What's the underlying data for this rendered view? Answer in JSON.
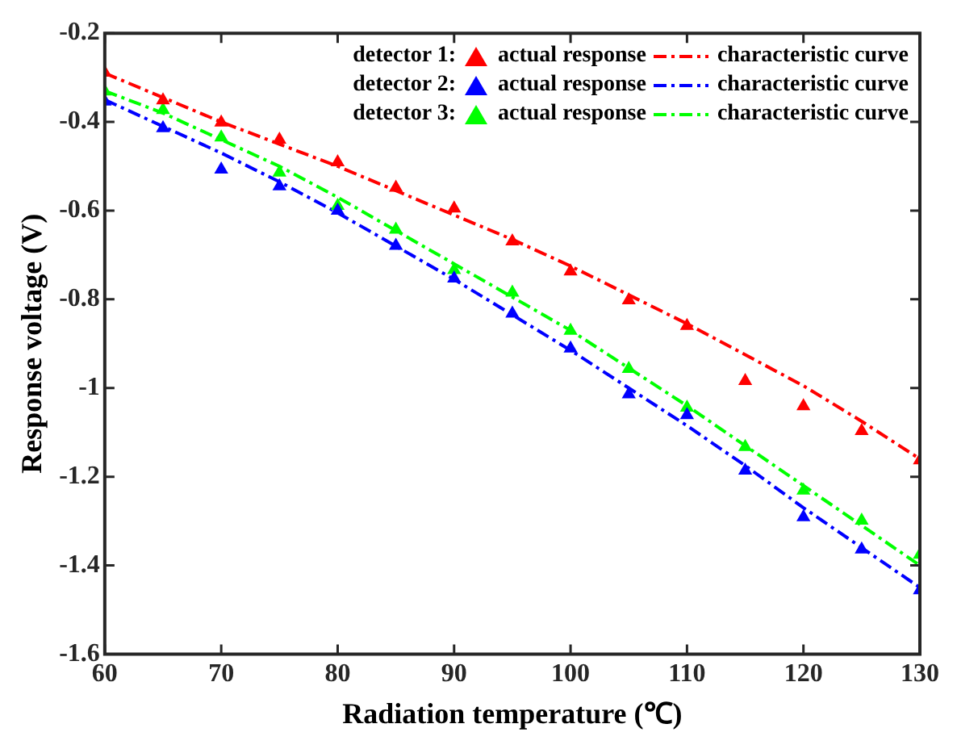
{
  "chart_data": {
    "type": "scatter",
    "xlabel": "Radiation temperature (℃)",
    "ylabel": "Response voltage (V)",
    "xlim": [
      60,
      130
    ],
    "xticks": [
      60,
      70,
      80,
      90,
      100,
      110,
      120,
      130
    ],
    "ylim": [
      -1.6,
      -0.2
    ],
    "yticks": [
      -1.6,
      -1.4,
      -1.2,
      -1,
      -0.8,
      -0.6,
      -0.4,
      -0.2
    ],
    "grid": false,
    "legend": "top right",
    "marker": "triangle",
    "annotations": [
      "detector 1:",
      "detector 2:",
      "detector 3:"
    ],
    "x": [
      60,
      65,
      70,
      75,
      80,
      85,
      90,
      95,
      100,
      105,
      110,
      115,
      120,
      125,
      130
    ],
    "series": [
      {
        "name": "actual response",
        "color": "#ff0000",
        "values": [
          -0.289,
          -0.351,
          -0.401,
          -0.44,
          -0.491,
          -0.548,
          -0.595,
          -0.669,
          -0.737,
          -0.802,
          -0.86,
          -0.984,
          -1.041,
          -1.097,
          -1.163
        ]
      },
      {
        "name": "characteristic curve",
        "type": "line",
        "line_style": "dashed",
        "marker": "none",
        "color": "#ff0000",
        "values": [
          -0.29,
          -0.345,
          -0.4,
          -0.45,
          -0.5,
          -0.555,
          -0.61,
          -0.665,
          -0.725,
          -0.79,
          -0.855,
          -0.925,
          -0.995,
          -1.075,
          -1.16
        ]
      },
      {
        "name": "actual response",
        "color": "#0000ff",
        "values": [
          -0.354,
          -0.414,
          -0.507,
          -0.545,
          -0.6,
          -0.679,
          -0.753,
          -0.832,
          -0.911,
          -1.014,
          -1.061,
          -1.186,
          -1.291,
          -1.364,
          -1.456
        ]
      },
      {
        "name": "characteristic curve",
        "type": "line",
        "line_style": "dashed",
        "marker": "none",
        "color": "#0000ff",
        "values": [
          -0.35,
          -0.41,
          -0.47,
          -0.535,
          -0.605,
          -0.68,
          -0.755,
          -0.835,
          -0.915,
          -1.0,
          -1.085,
          -1.175,
          -1.27,
          -1.36,
          -1.45
        ]
      },
      {
        "name": "actual response",
        "color": "#00ff00",
        "values": [
          -0.331,
          -0.373,
          -0.435,
          -0.514,
          -0.589,
          -0.643,
          -0.734,
          -0.785,
          -0.871,
          -0.957,
          -1.044,
          -1.133,
          -1.231,
          -1.299,
          -1.376
        ]
      },
      {
        "name": "characteristic curve",
        "type": "line",
        "line_style": "dashed",
        "marker": "none",
        "color": "#00ff00",
        "values": [
          -0.33,
          -0.38,
          -0.44,
          -0.5,
          -0.57,
          -0.645,
          -0.72,
          -0.795,
          -0.87,
          -0.955,
          -1.04,
          -1.13,
          -1.22,
          -1.31,
          -1.4
        ]
      }
    ]
  }
}
